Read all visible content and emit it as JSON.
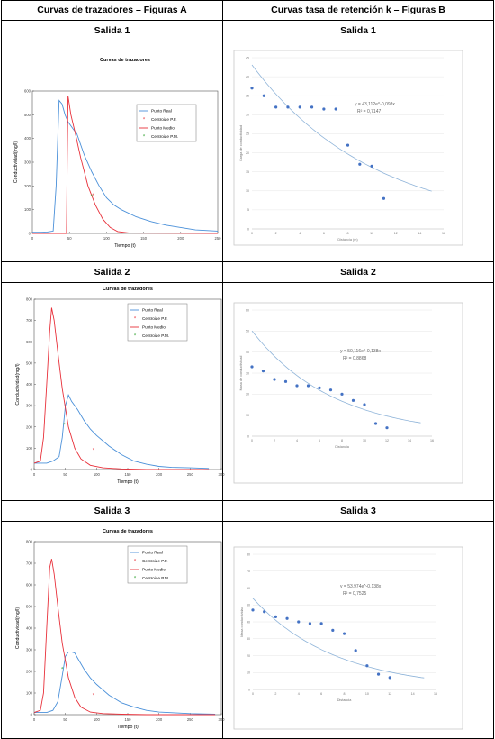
{
  "table": {
    "col_a_header": "Curvas de trazadores – Figuras A",
    "col_b_header": "Curvas tasa de retención k – Figuras B"
  },
  "rows": [
    {
      "label": "Salida 1"
    },
    {
      "label": "Salida 2"
    },
    {
      "label": "Salida 3"
    }
  ],
  "colors": {
    "real": "#4a90d9",
    "red": "#e8303a",
    "green": "#2ca02c",
    "trend": "#8fb4d9",
    "points": "#4472c4"
  },
  "chart_data": [
    {
      "id": "A1",
      "type": "line",
      "title": "Curvas de trazadores",
      "xlabel": "Tiempo (t)",
      "ylabel": "Conductividad(mg/l)",
      "xlim": [
        0,
        250
      ],
      "ylim": [
        0,
        600
      ],
      "xticks": [
        0,
        50,
        100,
        150,
        200,
        250
      ],
      "yticks": [
        0,
        100,
        200,
        300,
        400,
        500,
        600
      ],
      "legend": [
        "Punto Real",
        "Centroide P.F.",
        "Punto Medio",
        "Centroide P.M."
      ],
      "legend_position": "top-right",
      "series": [
        {
          "name": "Punto Real",
          "x": [
            0,
            12,
            20,
            28,
            32,
            36,
            40,
            44,
            48,
            55,
            60,
            70,
            80,
            90,
            100,
            110,
            120,
            140,
            160,
            180,
            200,
            220,
            250
          ],
          "y": [
            5,
            5,
            6,
            10,
            200,
            560,
            545,
            500,
            470,
            440,
            420,
            330,
            260,
            200,
            150,
            120,
            100,
            70,
            50,
            35,
            25,
            15,
            10
          ]
        },
        {
          "name": "Punto Medio",
          "x": [
            0,
            46,
            47,
            48,
            52,
            58,
            65,
            75,
            85,
            95,
            105,
            115,
            130,
            250
          ],
          "y": [
            0,
            0,
            300,
            580,
            500,
            420,
            320,
            200,
            120,
            60,
            25,
            8,
            2,
            0
          ]
        }
      ],
      "centroids": [
        {
          "name": "Centroide P.F.",
          "x": 82,
          "y": 160
        },
        {
          "name": "Centroide P.M.",
          "x": 80,
          "y": 155
        }
      ]
    },
    {
      "id": "A2",
      "type": "line",
      "title": "Curvas de trazadores",
      "xlabel": "Tiempo (t)",
      "ylabel": "Conductividad(mg/l)",
      "xlim": [
        0,
        300
      ],
      "ylim": [
        0,
        800
      ],
      "xticks": [
        0,
        50,
        100,
        150,
        200,
        250,
        300
      ],
      "yticks": [
        0,
        100,
        200,
        300,
        400,
        500,
        600,
        700,
        800
      ],
      "legend": [
        "Punto Real",
        "Centroide P.F.",
        "Punto Medio",
        "Centroide P.M."
      ],
      "legend_position": "top-right",
      "series": [
        {
          "name": "Punto Real",
          "x": [
            0,
            20,
            30,
            40,
            45,
            50,
            55,
            60,
            70,
            80,
            90,
            100,
            120,
            140,
            160,
            180,
            200,
            220,
            250,
            280
          ],
          "y": [
            30,
            30,
            40,
            60,
            150,
            300,
            350,
            320,
            280,
            230,
            190,
            160,
            110,
            70,
            40,
            25,
            15,
            10,
            8,
            5
          ]
        },
        {
          "name": "Punto Medio",
          "x": [
            0,
            10,
            15,
            20,
            25,
            28,
            32,
            38,
            45,
            55,
            65,
            75,
            90,
            110,
            140,
            180,
            280
          ],
          "y": [
            30,
            40,
            150,
            400,
            650,
            760,
            700,
            550,
            380,
            200,
            100,
            50,
            20,
            8,
            3,
            0,
            0
          ]
        }
      ],
      "centroids": [
        {
          "name": "Centroide P.F.",
          "x": 95,
          "y": 90
        },
        {
          "name": "Centroide P.M.",
          "x": 48,
          "y": 210
        }
      ]
    },
    {
      "id": "A3",
      "type": "line",
      "title": "Curvas de trazadores",
      "xlabel": "Tiempo (t)",
      "ylabel": "Conductividad(mg/l)",
      "xlim": [
        0,
        300
      ],
      "ylim": [
        0,
        800
      ],
      "xticks": [
        0,
        50,
        100,
        150,
        200,
        250,
        300
      ],
      "yticks": [
        0,
        100,
        200,
        300,
        400,
        500,
        600,
        700,
        800
      ],
      "legend": [
        "Punto Real",
        "Centroide P.F.",
        "Punto Medio",
        "Centroide P.M."
      ],
      "legend_position": "top-right",
      "series": [
        {
          "name": "Punto Real",
          "x": [
            0,
            20,
            30,
            38,
            45,
            50,
            55,
            60,
            65,
            70,
            80,
            90,
            100,
            120,
            140,
            160,
            180,
            200,
            250,
            290
          ],
          "y": [
            10,
            10,
            20,
            60,
            180,
            270,
            290,
            290,
            285,
            260,
            210,
            170,
            140,
            90,
            55,
            35,
            20,
            12,
            5,
            2
          ]
        },
        {
          "name": "Punto Medio",
          "x": [
            0,
            10,
            15,
            20,
            25,
            28,
            32,
            38,
            45,
            55,
            65,
            75,
            90,
            110,
            140,
            180,
            290
          ],
          "y": [
            10,
            20,
            100,
            400,
            680,
            720,
            650,
            500,
            330,
            170,
            80,
            35,
            12,
            5,
            2,
            0,
            0
          ]
        }
      ],
      "centroids": [
        {
          "name": "Centroide P.F.",
          "x": 95,
          "y": 90
        },
        {
          "name": "Centroide P.M.",
          "x": 45,
          "y": 210
        }
      ]
    },
    {
      "id": "B1",
      "type": "scatter",
      "xlabel": "Distancia (m)",
      "ylabel": "Carga de conductividad",
      "xlim": [
        0,
        16
      ],
      "ylim": [
        0,
        45
      ],
      "xticks": [
        0,
        2,
        4,
        6,
        8,
        10,
        12,
        14,
        16
      ],
      "yticks": [
        0,
        5,
        10,
        15,
        20,
        25,
        30,
        35,
        40,
        45
      ],
      "points": {
        "x": [
          0,
          1,
          2,
          3,
          4,
          5,
          6,
          7,
          8,
          9,
          10,
          11
        ],
        "y": [
          37,
          35,
          32,
          32,
          32,
          32,
          31.5,
          31.5,
          22,
          17,
          16.5,
          8
        ]
      },
      "trendline": {
        "type": "exponential",
        "a": 43.112,
        "b": -0.098,
        "x_range": [
          0,
          15
        ]
      },
      "equation": "y = 43,112e^-0,098x",
      "r2": "R² = 0,7147"
    },
    {
      "id": "B2",
      "type": "scatter",
      "xlabel": "Distancia",
      "ylabel": "Masa de conductividad",
      "xlim": [
        0,
        16
      ],
      "ylim": [
        0,
        60
      ],
      "xticks": [
        0,
        2,
        4,
        6,
        8,
        10,
        12,
        14,
        16
      ],
      "yticks": [
        0,
        10,
        20,
        30,
        40,
        50,
        60
      ],
      "points": {
        "x": [
          0,
          1,
          2,
          3,
          4,
          5,
          6,
          7,
          8,
          9,
          10,
          11,
          12
        ],
        "y": [
          33,
          31,
          27,
          26,
          24,
          24,
          23,
          22,
          20,
          17,
          15,
          6,
          4
        ]
      },
      "trendline": {
        "type": "exponential",
        "a": 50.116,
        "b": -0.138,
        "x_range": [
          0,
          15
        ]
      },
      "equation": "y = 50,116e^-0,138x",
      "r2": "R² = 0,8868"
    },
    {
      "id": "B3",
      "type": "scatter",
      "xlabel": "Distancia",
      "ylabel": "Masa conductividad",
      "xlim": [
        0,
        16
      ],
      "ylim": [
        0,
        80
      ],
      "xticks": [
        0,
        2,
        4,
        6,
        8,
        10,
        12,
        14,
        16
      ],
      "yticks": [
        0,
        10,
        20,
        30,
        40,
        50,
        60,
        70,
        80
      ],
      "points": {
        "x": [
          0,
          1,
          2,
          3,
          4,
          5,
          6,
          7,
          8,
          9,
          10,
          11,
          12
        ],
        "y": [
          47,
          46,
          43,
          42,
          40,
          39,
          39,
          35,
          33,
          23,
          14,
          9,
          7
        ]
      },
      "trendline": {
        "type": "exponential",
        "a": 53.974,
        "b": -0.138,
        "x_range": [
          0,
          15
        ]
      },
      "equation": "y = 53,974e^-0,138x",
      "r2": "R² = 0,7525"
    }
  ]
}
